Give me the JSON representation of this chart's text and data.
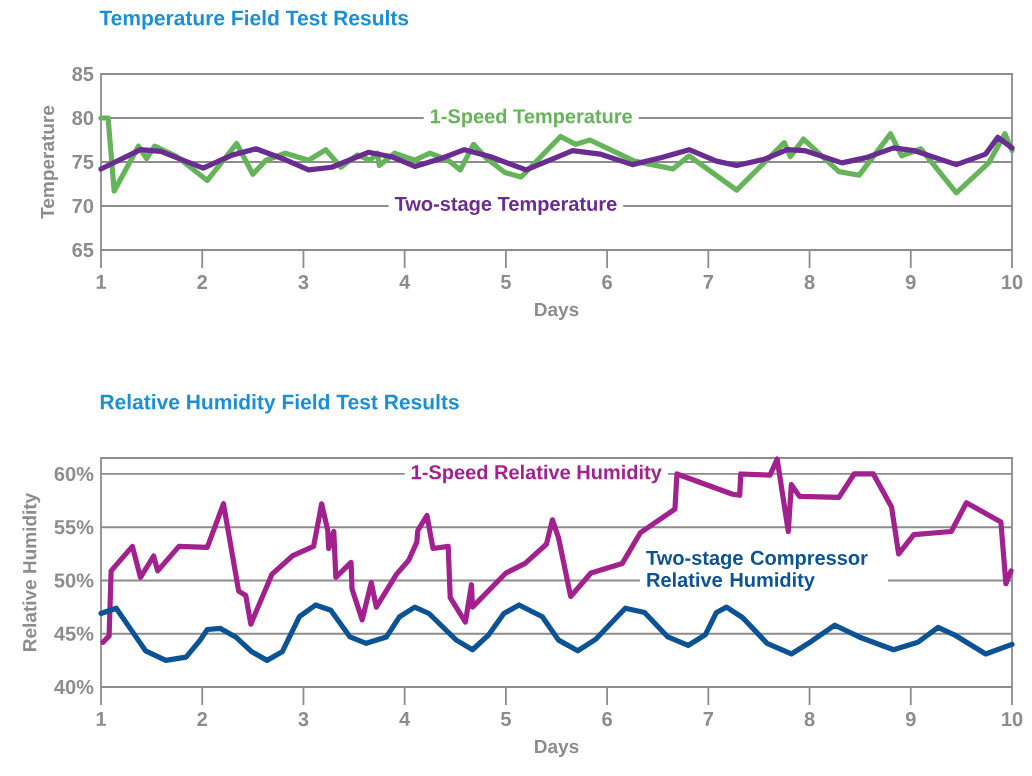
{
  "chart_data": [
    {
      "type": "line",
      "title": "Temperature Field Test Results",
      "xlabel": "Days",
      "ylabel": "Temperature",
      "xlim": [
        1,
        10
      ],
      "xticks": [
        1,
        2,
        3,
        4,
        5,
        6,
        7,
        8,
        9,
        10
      ],
      "ylim": [
        65,
        85
      ],
      "yticks": [
        65,
        70,
        75,
        80,
        85
      ],
      "grid": "y",
      "series": [
        {
          "name": "1-Speed Temperature",
          "color": "#66b45a",
          "x": [
            1,
            1.07,
            1.13,
            1.37,
            1.45,
            1.53,
            1.75,
            2.05,
            2.34,
            2.5,
            2.63,
            2.82,
            3.05,
            3.22,
            3.37,
            3.53,
            3.66,
            3.73,
            3.75,
            3.9,
            4.1,
            4.25,
            4.43,
            4.55,
            4.68,
            4.81,
            4.99,
            5.15,
            5.54,
            5.69,
            5.83,
            6.27,
            6.65,
            6.81,
            7.28,
            7.75,
            7.81,
            7.94,
            8.29,
            8.49,
            8.8,
            8.91,
            9.1,
            9.45,
            9.77,
            9.93,
            10
          ],
          "values": [
            80,
            80,
            71.7,
            76.8,
            75.4,
            76.8,
            75.6,
            72.9,
            77.1,
            73.6,
            75.2,
            76,
            75.2,
            76.4,
            74.4,
            75.8,
            75.2,
            76,
            74.6,
            76,
            75.2,
            76,
            75.2,
            74.1,
            77,
            75.4,
            73.8,
            73.3,
            77.9,
            77,
            77.5,
            75.1,
            74.2,
            75.7,
            71.8,
            77.2,
            75.6,
            77.6,
            73.9,
            73.5,
            78.2,
            75.7,
            76.5,
            71.5,
            74.9,
            78.2,
            76.3
          ]
        },
        {
          "name": "Two-stage Temperature",
          "color": "#6a2c91",
          "x": [
            1,
            1.39,
            1.59,
            2.01,
            2.3,
            2.53,
            2.79,
            3.05,
            3.28,
            3.64,
            3.87,
            4.1,
            4.36,
            4.59,
            4.85,
            5.2,
            5.66,
            5.93,
            6.25,
            6.54,
            6.81,
            7.08,
            7.28,
            7.55,
            7.78,
            7.95,
            8.32,
            8.56,
            8.83,
            9.03,
            9.45,
            9.74,
            9.86,
            10
          ],
          "values": [
            74.2,
            76.4,
            76.2,
            74.3,
            75.8,
            76.5,
            75.4,
            74.1,
            74.4,
            76.1,
            75.6,
            74.5,
            75.4,
            76.4,
            75.6,
            74.1,
            76.3,
            75.9,
            74.7,
            75.5,
            76.4,
            75.1,
            74.6,
            75.3,
            76.4,
            76.3,
            74.9,
            75.5,
            76.6,
            76.3,
            74.7,
            75.9,
            77.8,
            76.6
          ]
        }
      ]
    },
    {
      "type": "line",
      "title": "Relative Humidity Field Test Results",
      "xlabel": "Days",
      "ylabel": "Relative Humidity",
      "xlim": [
        1,
        10
      ],
      "xticks": [
        1,
        2,
        3,
        4,
        5,
        6,
        7,
        8,
        9,
        10
      ],
      "ylim": [
        40,
        61.5
      ],
      "yticks": [
        {
          "value": 40,
          "label": "40%"
        },
        {
          "value": 45,
          "label": "45%"
        },
        {
          "value": 50,
          "label": "50%"
        },
        {
          "value": 55,
          "label": "55%"
        },
        {
          "value": 60,
          "label": "60%"
        }
      ],
      "grid": "y",
      "series": [
        {
          "name": "1-Speed Relative Humidity",
          "color": "#a3218e",
          "x": [
            1.02,
            1.08,
            1.1,
            1.31,
            1.39,
            1.52,
            1.56,
            1.77,
            2.05,
            2.21,
            2.36,
            2.43,
            2.48,
            2.69,
            2.89,
            3.1,
            3.18,
            3.24,
            3.25,
            3.3,
            3.32,
            3.47,
            3.48,
            3.58,
            3.67,
            3.72,
            3.92,
            4.04,
            4.12,
            4.13,
            4.22,
            4.28,
            4.43,
            4.45,
            4.6,
            4.66,
            4.67,
            5.0,
            5.19,
            5.4,
            5.46,
            5.52,
            5.64,
            5.84,
            6.15,
            6.33,
            6.67,
            6.69,
            7.24,
            7.31,
            7.32,
            7.61,
            7.68,
            7.79,
            7.82,
            7.9,
            8.29,
            8.44,
            8.63,
            8.81,
            8.88,
            9.03,
            9.4,
            9.55,
            9.89,
            9.94,
            9.99
          ],
          "values": [
            44.2,
            44.8,
            50.9,
            53.2,
            50.3,
            52.3,
            50.9,
            53.2,
            53.1,
            57.2,
            49,
            48.6,
            45.9,
            50.6,
            52.3,
            53.2,
            57.2,
            54.7,
            53,
            54.6,
            50.3,
            51.7,
            49.2,
            46.3,
            49.8,
            47.5,
            50.6,
            51.9,
            53.6,
            54.7,
            56.1,
            53,
            53.2,
            48.4,
            46.1,
            49.6,
            47.5,
            50.7,
            51.6,
            53.4,
            55.7,
            54,
            48.5,
            50.7,
            51.6,
            54.5,
            56.7,
            60,
            58.1,
            58,
            60,
            59.9,
            61.4,
            54.6,
            59,
            57.9,
            57.8,
            60,
            60,
            56.9,
            52.5,
            54.3,
            54.6,
            57.3,
            55.5,
            49.7,
            50.9
          ]
        },
        {
          "name": "Two-stage Compressor Relative Humidity",
          "color": "#0b5394",
          "x": [
            1,
            1.15,
            1.31,
            1.44,
            1.64,
            1.84,
            1.98,
            2.05,
            2.18,
            2.33,
            2.49,
            2.64,
            2.79,
            2.96,
            3.12,
            3.27,
            3.46,
            3.62,
            3.82,
            3.95,
            4.1,
            4.24,
            4.51,
            4.67,
            4.83,
            4.98,
            5.13,
            5.36,
            5.52,
            5.71,
            5.89,
            6.18,
            6.37,
            6.6,
            6.8,
            6.97,
            7.08,
            7.18,
            7.34,
            7.58,
            7.82,
            8.02,
            8.25,
            8.49,
            8.83,
            9.07,
            9.27,
            9.43,
            9.74,
            10
          ],
          "values": [
            46.9,
            47.4,
            45.2,
            43.4,
            42.5,
            42.8,
            44.4,
            45.4,
            45.5,
            44.7,
            43.3,
            42.5,
            43.3,
            46.6,
            47.7,
            47.2,
            44.7,
            44.1,
            44.7,
            46.6,
            47.5,
            46.9,
            44.4,
            43.5,
            44.9,
            46.9,
            47.7,
            46.6,
            44.4,
            43.4,
            44.5,
            47.4,
            47,
            44.7,
            43.9,
            44.9,
            47,
            47.5,
            46.5,
            44.1,
            43.1,
            44.3,
            45.8,
            44.7,
            43.5,
            44.2,
            45.6,
            44.9,
            43.1,
            44
          ]
        }
      ]
    }
  ]
}
